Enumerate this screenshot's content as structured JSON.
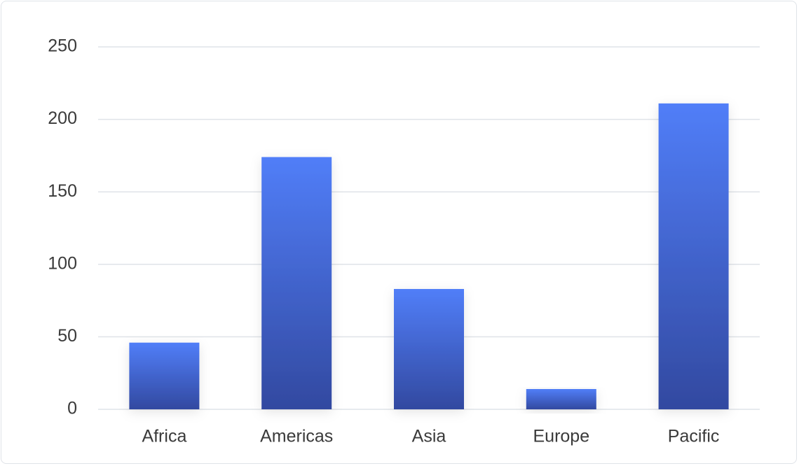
{
  "chart_data": {
    "type": "bar",
    "categories": [
      "Africa",
      "Americas",
      "Asia",
      "Europe",
      "Pacific"
    ],
    "values": [
      46,
      174,
      83,
      14,
      211
    ],
    "color": [
      "#517ef8",
      "#3249a0"
    ],
    "ylim": [
      0,
      250
    ],
    "yticks": [
      0,
      50,
      100,
      150,
      200,
      250
    ],
    "grid": true
  }
}
